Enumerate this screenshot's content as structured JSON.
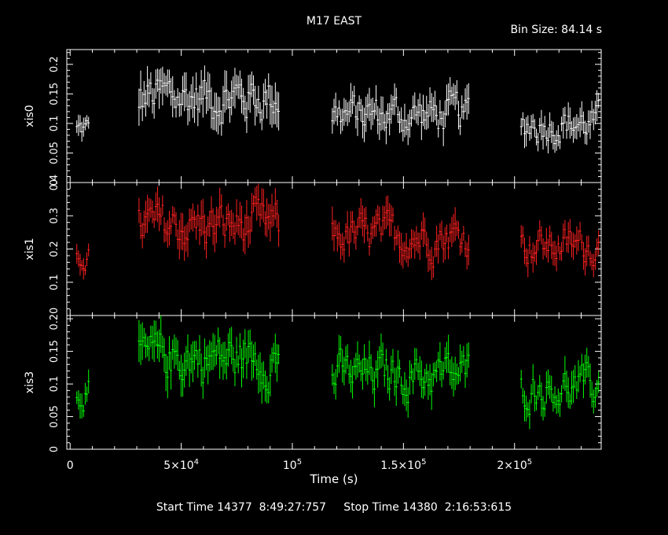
{
  "title": "M17 EAST",
  "bin_size_label": "Bin Size: 84.14 s",
  "footer": "Start Time 14377  8:49:27:757     Stop Time 14380  2:16:53:615",
  "colors": {
    "background": "#000000",
    "axes": "#ffffff",
    "xis0": "#ffffff",
    "xis1": "#ff2020",
    "xis3": "#00ff00"
  },
  "chart_data": {
    "type": "line",
    "grid": false,
    "legend": "none",
    "xlabel": "Time (s)",
    "xlim": [
      -1500,
      239000
    ],
    "x_ticks": [
      {
        "value": 0,
        "mant": "0",
        "exp": ""
      },
      {
        "value": 50000,
        "mant": "5×10",
        "exp": "4"
      },
      {
        "value": 100000,
        "mant": "10",
        "exp": "5"
      },
      {
        "value": 150000,
        "mant": "1.5×10",
        "exp": "5"
      },
      {
        "value": 200000,
        "mant": "2×10",
        "exp": "5"
      }
    ],
    "panels": [
      {
        "ylabel": "xis0",
        "color": "#ffffff",
        "ylim": [
          0,
          0.225
        ],
        "yticks": [
          "0",
          "0.05",
          "0.1",
          "0.15",
          "0.2"
        ],
        "ytick_values": [
          0,
          0.05,
          0.1,
          0.15,
          0.2
        ],
        "segments": [
          {
            "x_start": 3000,
            "x_end": 9000,
            "mean": 0.09,
            "spread": 0.03
          },
          {
            "x_start": 31000,
            "x_end": 94000,
            "mean": 0.145,
            "spread": 0.06
          },
          {
            "x_start": 118000,
            "x_end": 180000,
            "mean": 0.115,
            "spread": 0.05
          },
          {
            "x_start": 203000,
            "x_end": 238000,
            "mean": 0.1,
            "spread": 0.045
          }
        ]
      },
      {
        "ylabel": "xis1",
        "color": "#ff2020",
        "ylim": [
          0,
          0.4
        ],
        "yticks": [
          "0.1",
          "0.2",
          "0.3",
          "0.4"
        ],
        "ytick_values": [
          0.1,
          0.2,
          0.3,
          0.4
        ],
        "segments": [
          {
            "x_start": 3000,
            "x_end": 9000,
            "mean": 0.18,
            "spread": 0.06
          },
          {
            "x_start": 31000,
            "x_end": 94000,
            "mean": 0.27,
            "spread": 0.1
          },
          {
            "x_start": 118000,
            "x_end": 180000,
            "mean": 0.24,
            "spread": 0.09
          },
          {
            "x_start": 203000,
            "x_end": 238000,
            "mean": 0.21,
            "spread": 0.08
          }
        ]
      },
      {
        "ylabel": "xis3",
        "color": "#00ff00",
        "ylim": [
          0,
          0.205
        ],
        "yticks": [
          "0",
          "0.05",
          "0.1",
          "0.15",
          "0.20"
        ],
        "ytick_values": [
          0,
          0.05,
          0.1,
          0.15,
          0.2
        ],
        "segments": [
          {
            "x_start": 3000,
            "x_end": 9000,
            "mean": 0.09,
            "spread": 0.035
          },
          {
            "x_start": 31000,
            "x_end": 94000,
            "mean": 0.14,
            "spread": 0.055
          },
          {
            "x_start": 118000,
            "x_end": 180000,
            "mean": 0.115,
            "spread": 0.05
          },
          {
            "x_start": 203000,
            "x_end": 238000,
            "mean": 0.095,
            "spread": 0.045
          }
        ]
      }
    ]
  }
}
